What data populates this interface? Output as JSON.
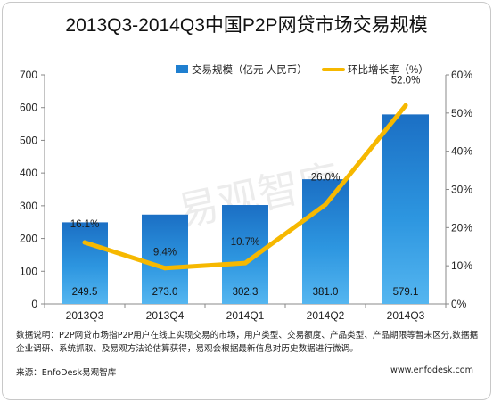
{
  "title": "2013Q3-2014Q3中国P2P网贷市场交易规模",
  "watermark": "易观智库",
  "chart_data": {
    "type": "bar",
    "categories": [
      "2013Q3",
      "2013Q4",
      "2014Q1",
      "2014Q2",
      "2014Q3"
    ],
    "series": [
      {
        "name": "交易规模（亿元 人民币）",
        "type": "bar",
        "axis": "left",
        "values": [
          249.5,
          273.0,
          302.3,
          381.0,
          579.1
        ],
        "labels": [
          "249.5",
          "273.0",
          "302.3",
          "381.0",
          "579.1"
        ],
        "color": "#1f7fd0"
      },
      {
        "name": "环比增长率（%）",
        "type": "line",
        "axis": "right",
        "values": [
          16.1,
          9.4,
          10.7,
          26.0,
          52.0
        ],
        "labels": [
          "16.1%",
          "9.4%",
          "10.7%",
          "26.0%",
          "52.0%"
        ],
        "color": "#f6b800"
      }
    ],
    "y_left": {
      "min": 0,
      "max": 700,
      "ticks": [
        "0",
        "100",
        "200",
        "300",
        "400",
        "500",
        "600",
        "700"
      ]
    },
    "y_right": {
      "min": 0,
      "max": 60,
      "ticks": [
        "0%",
        "10%",
        "20%",
        "30%",
        "40%",
        "50%",
        "60%"
      ]
    },
    "legend": "top-right",
    "grid": false
  },
  "note": "数据说明：P2P网贷市场指P2P用户在线上实现交易的市场，用户类型、交易额度、产品类型、产品期限等暂未区分,数据据企业调研、系统抓取、及易观方法论估算获得，易观会根据最新信息对历史数据进行微调。",
  "footer": {
    "source": "来源：EnfoDesk易观智库",
    "url": "www.enfodesk.com"
  }
}
